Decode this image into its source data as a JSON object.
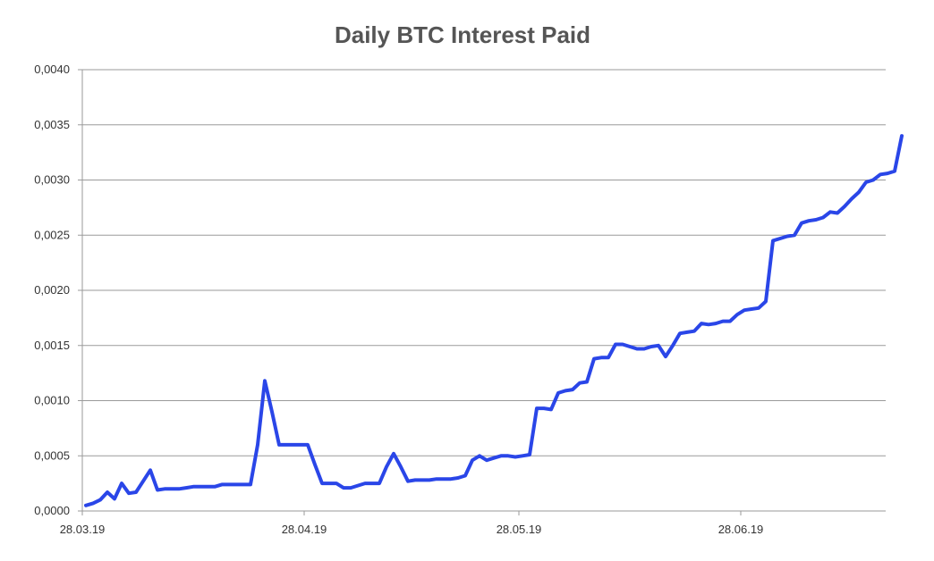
{
  "chart_data": {
    "type": "line",
    "title": "Daily BTC Interest Paid",
    "xlabel": "",
    "ylabel": "",
    "x_start": "28.03.19",
    "x_ticks": [
      "28.03.19",
      "28.04.19",
      "28.05.19",
      "28.06.19"
    ],
    "y_ticks": [
      "0,0000",
      "0,0005",
      "0,0010",
      "0,0015",
      "0,0020",
      "0,0025",
      "0,0030",
      "0,0035",
      "0,0040"
    ],
    "ylim": [
      0,
      0.004
    ],
    "xlim": [
      "28.03.19",
      "26.07.19"
    ],
    "grid": "horizontal",
    "legend": "none",
    "series_color": "#2a46e8",
    "series": [
      {
        "values": [
          5e-05,
          7e-05,
          0.0001,
          0.00017,
          0.00011,
          0.00025,
          0.00016,
          0.00017,
          0.00027,
          0.00037,
          0.00019,
          0.0002,
          0.0002,
          0.0002,
          0.00021,
          0.00022,
          0.00022,
          0.00022,
          0.00022,
          0.00024,
          0.00024,
          0.00024,
          0.00024,
          0.00024,
          0.0006,
          0.00118,
          0.0009,
          0.0006,
          0.0006,
          0.0006,
          0.0006,
          0.0006,
          0.00042,
          0.00025,
          0.00025,
          0.00025,
          0.00021,
          0.00021,
          0.00023,
          0.00025,
          0.00025,
          0.00025,
          0.0004,
          0.00052,
          0.0004,
          0.00027,
          0.00028,
          0.00028,
          0.00028,
          0.00029,
          0.00029,
          0.00029,
          0.0003,
          0.00032,
          0.00046,
          0.0005,
          0.00046,
          0.00048,
          0.0005,
          0.0005,
          0.00049,
          0.0005,
          0.00051,
          0.00093,
          0.00093,
          0.00092,
          0.00107,
          0.00109,
          0.0011,
          0.00116,
          0.00117,
          0.00138,
          0.00139,
          0.00139,
          0.00151,
          0.00151,
          0.00149,
          0.00147,
          0.00147,
          0.00149,
          0.0015,
          0.0014,
          0.0015,
          0.00161,
          0.00162,
          0.00163,
          0.0017,
          0.00169,
          0.0017,
          0.00172,
          0.00172,
          0.00178,
          0.00182,
          0.00183,
          0.00184,
          0.0019,
          0.00245,
          0.00247,
          0.00249,
          0.0025,
          0.00261,
          0.00263,
          0.00264,
          0.00266,
          0.00271,
          0.0027,
          0.00276,
          0.00283,
          0.00289,
          0.00298,
          0.003,
          0.00305,
          0.00306,
          0.00308,
          0.0034
        ]
      }
    ]
  }
}
